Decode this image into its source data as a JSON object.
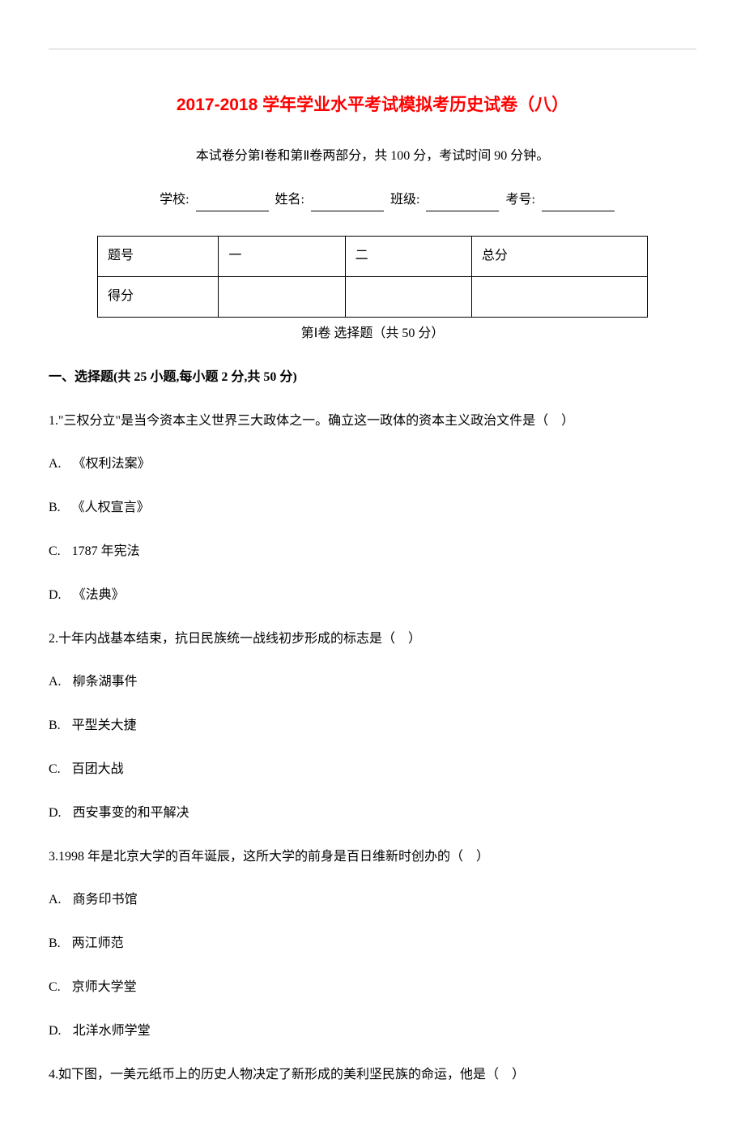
{
  "title": "2017-2018 学年学业水平考试模拟考历史试卷（八）",
  "subtitle": "本试卷分第Ⅰ卷和第Ⅱ卷两部分，共 100 分，考试时间 90 分钟。",
  "info": {
    "school_label": "学校:",
    "name_label": "姓名:",
    "class_label": "班级:",
    "exam_id_label": "考号:"
  },
  "score_table": {
    "header_row": [
      "题号",
      "一",
      "二",
      "总分"
    ],
    "score_row_label": "得分"
  },
  "part1_title": "第Ⅰ卷 选择题（共 50 分）",
  "section_a_heading": "一、选择题(共 25 小题,每小题 2 分,共 50 分)",
  "questions": [
    {
      "number": "1.",
      "text": "\"三权分立\"是当今资本主义世界三大政体之一。确立这一政体的资本主义政治文件是（　）",
      "options": [
        {
          "label": "A.",
          "text": "《权利法案》"
        },
        {
          "label": "B.",
          "text": "《人权宣言》"
        },
        {
          "label": "C.",
          "text": "1787 年宪法"
        },
        {
          "label": "D.",
          "text": "《法典》"
        }
      ]
    },
    {
      "number": "2.",
      "text": "十年内战基本结束，抗日民族统一战线初步形成的标志是（　）",
      "options": [
        {
          "label": "A.",
          "text": "柳条湖事件"
        },
        {
          "label": "B.",
          "text": "平型关大捷"
        },
        {
          "label": "C.",
          "text": "百团大战"
        },
        {
          "label": "D.",
          "text": "西安事变的和平解决"
        }
      ]
    },
    {
      "number": "3.",
      "text": "1998 年是北京大学的百年诞辰，这所大学的前身是百日维新时创办的（　）",
      "options": [
        {
          "label": "A.",
          "text": "商务印书馆"
        },
        {
          "label": "B.",
          "text": "两江师范"
        },
        {
          "label": "C.",
          "text": "京师大学堂"
        },
        {
          "label": "D.",
          "text": "北洋水师学堂"
        }
      ]
    },
    {
      "number": "4.",
      "text": "如下图，一美元纸币上的历史人物决定了新形成的美利坚民族的命运，他是（　）",
      "options": []
    }
  ]
}
